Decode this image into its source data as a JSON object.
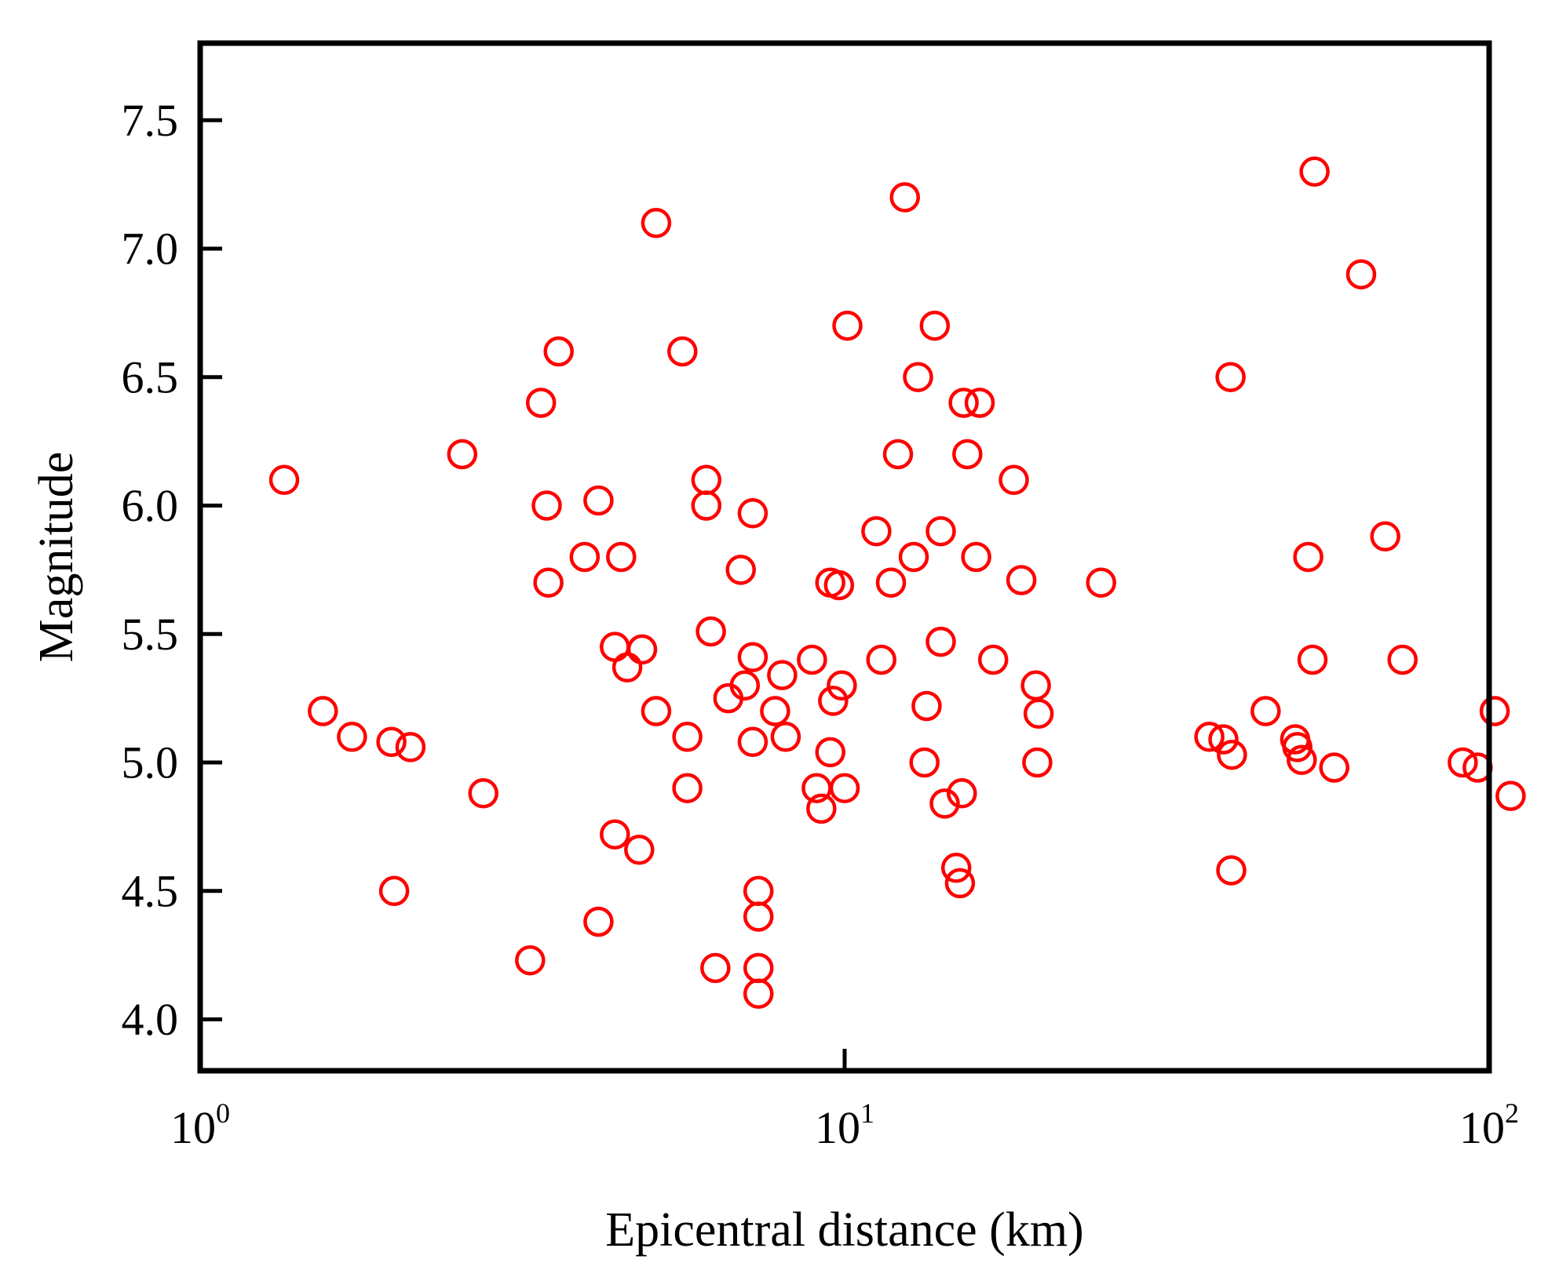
{
  "colors": {
    "marker": "#ff0000",
    "axes": "#000000",
    "background": "#ffffff"
  },
  "chart_data": {
    "type": "scatter",
    "title": "",
    "xlabel": "Epicentral distance (km)",
    "ylabel": "Magnitude",
    "xscale": "log",
    "xlim": [
      1,
      100
    ],
    "ylim": [
      3.8,
      7.8
    ],
    "xticks": [
      {
        "value": 1,
        "base": "10",
        "exp": "0"
      },
      {
        "value": 10,
        "base": "10",
        "exp": "1"
      },
      {
        "value": 100,
        "base": "10",
        "exp": "2"
      }
    ],
    "yticks": [
      "4.0",
      "4.5",
      "5.0",
      "5.5",
      "6.0",
      "6.5",
      "7.0",
      "7.5"
    ],
    "grid": false,
    "marker": "open circle",
    "series": [
      {
        "points": [
          [
            1.35,
            6.1
          ],
          [
            1.55,
            5.2
          ],
          [
            1.72,
            5.1
          ],
          [
            1.98,
            5.08
          ],
          [
            2.12,
            5.06
          ],
          [
            2.0,
            4.5
          ],
          [
            2.55,
            6.2
          ],
          [
            2.75,
            4.88
          ],
          [
            3.25,
            4.23
          ],
          [
            3.38,
            6.4
          ],
          [
            3.6,
            6.6
          ],
          [
            3.45,
            6.0
          ],
          [
            3.47,
            5.7
          ],
          [
            3.95,
            5.8
          ],
          [
            4.15,
            6.02
          ],
          [
            4.5,
            5.8
          ],
          [
            4.15,
            4.38
          ],
          [
            4.4,
            5.45
          ],
          [
            4.6,
            5.37
          ],
          [
            4.4,
            4.72
          ],
          [
            4.85,
            5.44
          ],
          [
            4.8,
            4.66
          ],
          [
            5.1,
            7.1
          ],
          [
            5.1,
            5.2
          ],
          [
            5.6,
            6.6
          ],
          [
            5.7,
            5.1
          ],
          [
            5.7,
            4.9
          ],
          [
            6.1,
            6.1
          ],
          [
            6.1,
            6.0
          ],
          [
            6.2,
            5.51
          ],
          [
            6.3,
            4.2
          ],
          [
            6.6,
            5.25
          ],
          [
            6.9,
            5.75
          ],
          [
            7.0,
            5.3
          ],
          [
            7.2,
            5.97
          ],
          [
            7.2,
            5.41
          ],
          [
            7.2,
            5.08
          ],
          [
            7.35,
            4.5
          ],
          [
            7.35,
            4.4
          ],
          [
            7.35,
            4.2
          ],
          [
            7.35,
            4.1
          ],
          [
            7.8,
            5.2
          ],
          [
            8.0,
            5.34
          ],
          [
            8.1,
            5.1
          ],
          [
            8.9,
            5.4
          ],
          [
            9.05,
            4.9
          ],
          [
            9.2,
            4.82
          ],
          [
            9.5,
            5.7
          ],
          [
            9.6,
            5.24
          ],
          [
            9.5,
            5.04
          ],
          [
            9.8,
            5.69
          ],
          [
            9.9,
            5.3
          ],
          [
            10.0,
            4.9
          ],
          [
            10.1,
            6.7
          ],
          [
            11.2,
            5.9
          ],
          [
            11.4,
            5.4
          ],
          [
            11.8,
            5.7
          ],
          [
            12.1,
            6.2
          ],
          [
            12.4,
            7.2
          ],
          [
            12.8,
            5.8
          ],
          [
            13.0,
            6.5
          ],
          [
            13.3,
            5.0
          ],
          [
            13.4,
            5.22
          ],
          [
            13.8,
            6.7
          ],
          [
            14.1,
            5.9
          ],
          [
            14.1,
            5.47
          ],
          [
            14.3,
            4.84
          ],
          [
            14.9,
            4.59
          ],
          [
            15.1,
            4.53
          ],
          [
            15.2,
            4.88
          ],
          [
            15.3,
            6.4
          ],
          [
            15.5,
            6.2
          ],
          [
            16.2,
            6.4
          ],
          [
            16.0,
            5.8
          ],
          [
            17.0,
            5.4
          ],
          [
            18.3,
            6.1
          ],
          [
            18.8,
            5.71
          ],
          [
            19.8,
            5.3
          ],
          [
            20.0,
            5.19
          ],
          [
            19.9,
            5.0
          ],
          [
            25.0,
            5.7
          ],
          [
            36.8,
            5.1
          ],
          [
            38.7,
            5.09
          ],
          [
            39.7,
            6.5
          ],
          [
            39.9,
            5.03
          ],
          [
            39.8,
            4.58
          ],
          [
            45.0,
            5.2
          ],
          [
            50.0,
            5.09
          ],
          [
            50.4,
            5.06
          ],
          [
            51.2,
            5.01
          ],
          [
            52.4,
            5.8
          ],
          [
            53.2,
            5.4
          ],
          [
            53.6,
            7.3
          ],
          [
            57.5,
            4.98
          ],
          [
            63.3,
            6.9
          ],
          [
            69.0,
            5.88
          ],
          [
            73.4,
            5.4
          ],
          [
            91.0,
            5.0
          ],
          [
            96.0,
            4.98
          ],
          [
            102.0,
            5.2
          ],
          [
            108.0,
            4.87
          ]
        ]
      }
    ]
  }
}
